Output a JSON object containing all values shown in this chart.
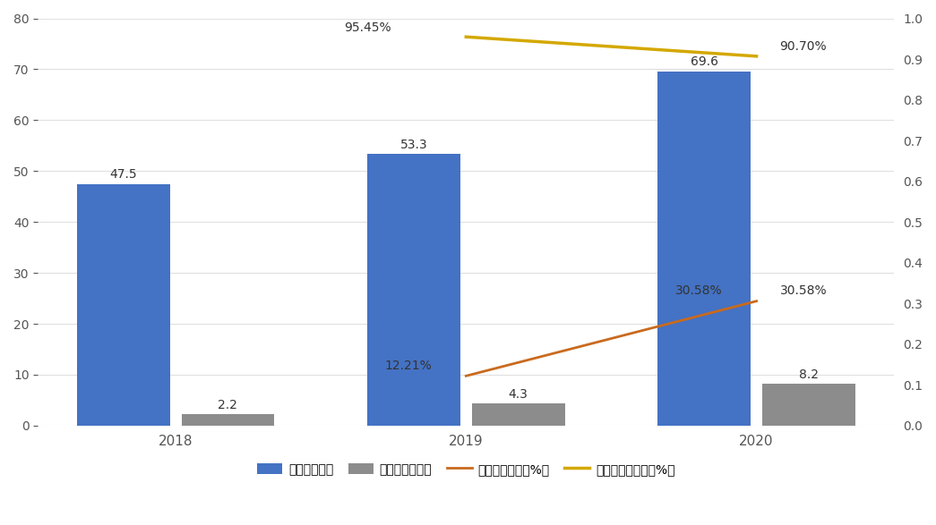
{
  "years": [
    "2018",
    "2019",
    "2020"
  ],
  "revenue": [
    47.5,
    53.3,
    69.6
  ],
  "net_profit": [
    2.2,
    4.3,
    8.2
  ],
  "revenue_growth": [
    null,
    0.1221,
    0.3058
  ],
  "profit_growth": [
    null,
    0.9545,
    0.907
  ],
  "bar_width": 0.32,
  "bar_color_revenue": "#4472C4",
  "bar_color_profit": "#8C8C8C",
  "line_color_revenue_growth": "#C96A1E",
  "line_color_profit_growth": "#D4A800",
  "ylim_left": [
    0,
    80
  ],
  "ylim_right": [
    0,
    1.0
  ],
  "yticks_left": [
    0,
    10,
    20,
    30,
    40,
    50,
    60,
    70,
    80
  ],
  "yticks_right": [
    0,
    0.1,
    0.2,
    0.3,
    0.4,
    0.5,
    0.6,
    0.7,
    0.8,
    0.9,
    1.0
  ],
  "legend_labels": [
    "收入（亿元）",
    "净利润（亿元）",
    "收入同比增长（%）",
    "净利润同比增长（%）"
  ],
  "revenue_labels": [
    "47.5",
    "53.3",
    "69.6"
  ],
  "profit_labels": [
    "2.2",
    "4.3",
    "8.2"
  ],
  "revenue_growth_labels": [
    null,
    "12.21%",
    "30.58%"
  ],
  "profit_growth_labels": [
    null,
    "95.45%",
    "90.70%"
  ],
  "background_color": "#FFFFFF",
  "figsize": [
    10.45,
    5.87
  ],
  "dpi": 100
}
